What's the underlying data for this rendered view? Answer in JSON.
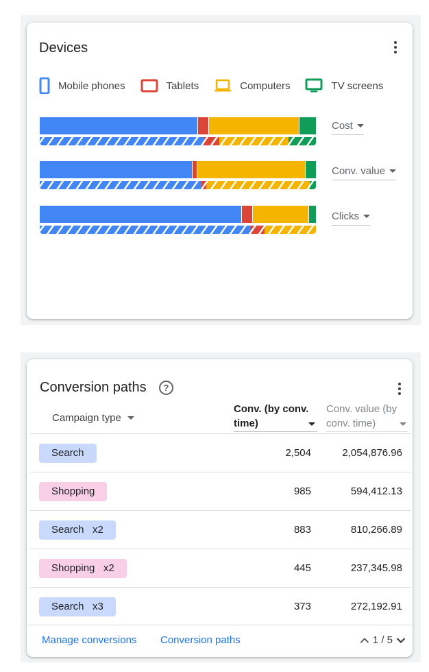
{
  "colors": {
    "mobile": "#4285f4",
    "tablets": "#db4437",
    "computers": "#f4b400",
    "tv": "#0f9d58",
    "search_chip": "#c9d9fb",
    "shopping_chip": "#f8cfe6",
    "link": "#1a73e8"
  },
  "devices": {
    "title": "Devices",
    "legend": [
      {
        "label": "Mobile phones",
        "icon": "mobile-phone-icon",
        "color": "#4285f4"
      },
      {
        "label": "Tablets",
        "icon": "tablet-icon",
        "color": "#db4437"
      },
      {
        "label": "Computers",
        "icon": "laptop-icon",
        "color": "#f4b400"
      },
      {
        "label": "TV screens",
        "icon": "tv-icon",
        "color": "#0f9d58"
      }
    ],
    "bars": [
      {
        "metric": "Cost",
        "solid": [
          57.3,
          3.9,
          32.9,
          5.9
        ],
        "compare": [
          59.5,
          5.5,
          25.0,
          10.0
        ]
      },
      {
        "metric": "Conv. value",
        "solid": [
          55.4,
          1.7,
          39.1,
          3.8
        ],
        "compare": [
          58.5,
          1.7,
          37.5,
          2.3
        ]
      },
      {
        "metric": "Clicks",
        "solid": [
          73.2,
          4.0,
          20.3,
          2.5
        ],
        "compare": [
          76.5,
          5.0,
          18.5,
          0
        ]
      }
    ]
  },
  "paths": {
    "title": "Conversion paths",
    "col_campaign": "Campaign type",
    "col_conv_line1": "Conv. (by conv.",
    "col_conv_line2": "time)",
    "col_value_line1": "Conv. value (by",
    "col_value_line2": "conv. time)",
    "rows": [
      {
        "label": "Search",
        "type": "search",
        "conv": "2,504",
        "value": "2,054,876.96"
      },
      {
        "label": "Shopping",
        "type": "shopping",
        "conv": "985",
        "value": "594,412.13"
      },
      {
        "label": "Search   x2",
        "type": "search",
        "conv": "883",
        "value": "810,266.89"
      },
      {
        "label": "Shopping   x2",
        "type": "shopping",
        "conv": "445",
        "value": "237,345.98"
      },
      {
        "label": "Search   x3",
        "type": "search",
        "conv": "373",
        "value": "272,192.91"
      }
    ],
    "footer": {
      "manage_label": "Manage conversions",
      "paths_label": "Conversion paths",
      "pager": "1 / 5"
    }
  }
}
